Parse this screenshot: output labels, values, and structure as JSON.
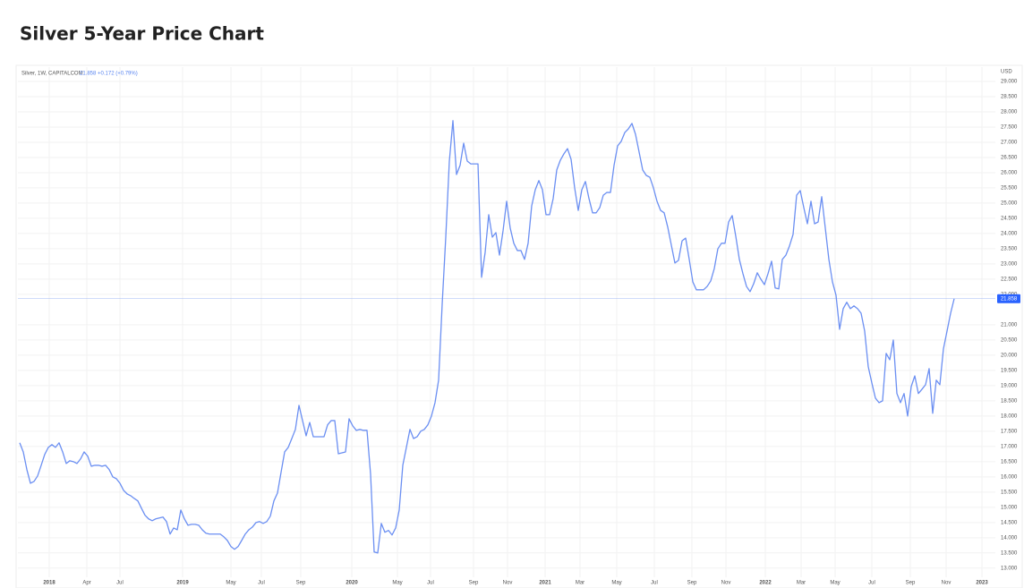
{
  "chart_data": {
    "type": "line",
    "title": "Silver 5-Year Price Chart",
    "instrument": "Silver, 1W, CAPITALCOM",
    "quote": "21.858 +0.172 (+0.79%)",
    "y_axis_label": "USD",
    "grid": true,
    "series": [
      {
        "name": "Silver",
        "color": "#6b8ff2",
        "values": [
          17.12,
          16.82,
          16.24,
          15.79,
          15.85,
          16.03,
          16.38,
          16.74,
          16.97,
          17.06,
          16.97,
          17.12,
          16.82,
          16.44,
          16.53,
          16.5,
          16.44,
          16.59,
          16.82,
          16.68,
          16.35,
          16.38,
          16.38,
          16.35,
          16.38,
          16.24,
          16.0,
          15.94,
          15.79,
          15.56,
          15.44,
          15.38,
          15.29,
          15.21,
          14.97,
          14.74,
          14.62,
          14.56,
          14.62,
          14.65,
          14.68,
          14.53,
          14.12,
          14.32,
          14.26,
          14.91,
          14.62,
          14.41,
          14.44,
          14.44,
          14.41,
          14.26,
          14.15,
          14.12,
          14.12,
          14.12,
          14.12,
          14.03,
          13.91,
          13.71,
          13.62,
          13.71,
          13.91,
          14.12,
          14.26,
          14.35,
          14.5,
          14.53,
          14.47,
          14.53,
          14.71,
          15.21,
          15.47,
          16.15,
          16.82,
          16.97,
          17.26,
          17.56,
          18.35,
          17.85,
          17.35,
          17.79,
          17.32,
          17.32,
          17.32,
          17.32,
          17.71,
          17.85,
          17.85,
          16.76,
          16.79,
          16.82,
          17.91,
          17.68,
          17.53,
          17.56,
          17.53,
          17.53,
          16.09,
          13.53,
          13.5,
          14.47,
          14.18,
          14.24,
          14.09,
          14.32,
          14.91,
          16.38,
          16.97,
          17.56,
          17.26,
          17.32,
          17.5,
          17.56,
          17.71,
          18.0,
          18.44,
          19.18,
          21.68,
          23.88,
          26.38,
          27.71,
          25.94,
          26.24,
          26.97,
          26.38,
          26.29,
          26.29,
          26.29,
          22.56,
          23.38,
          24.62,
          23.88,
          24.03,
          23.29,
          24.09,
          25.06,
          24.18,
          23.68,
          23.44,
          23.44,
          23.15,
          23.68,
          24.91,
          25.44,
          25.74,
          25.44,
          24.62,
          24.62,
          25.15,
          26.09,
          26.41,
          26.62,
          26.79,
          26.44,
          25.5,
          24.76,
          25.44,
          25.71,
          25.15,
          24.68,
          24.68,
          24.85,
          25.26,
          25.35,
          25.35,
          26.24,
          26.88,
          27.03,
          27.32,
          27.44,
          27.62,
          27.26,
          26.68,
          26.09,
          25.91,
          25.85,
          25.5,
          25.06,
          24.76,
          24.68,
          24.21,
          23.62,
          23.03,
          23.12,
          23.76,
          23.85,
          23.15,
          22.41,
          22.15,
          22.15,
          22.15,
          22.26,
          22.44,
          22.85,
          23.5,
          23.68,
          23.68,
          24.38,
          24.59,
          23.91,
          23.15,
          22.68,
          22.26,
          22.09,
          22.35,
          22.71,
          22.5,
          22.32,
          22.68,
          23.09,
          22.21,
          22.18,
          23.15,
          23.29,
          23.59,
          23.97,
          25.26,
          25.41,
          24.85,
          24.32,
          25.06,
          24.32,
          24.38,
          25.21,
          24.18,
          23.15,
          22.41,
          21.97,
          20.85,
          21.53,
          21.74,
          21.53,
          21.62,
          21.53,
          21.38,
          20.79,
          19.62,
          19.09,
          18.59,
          18.44,
          18.5,
          20.06,
          19.85,
          20.5,
          18.74,
          18.44,
          18.74,
          18.0,
          18.97,
          19.32,
          18.74,
          18.88,
          19.03,
          19.56,
          18.09,
          19.18,
          19.03,
          20.21,
          20.79,
          21.38,
          21.858
        ]
      }
    ],
    "xlim": [
      -0.5,
      272.5
    ],
    "xticks": [
      {
        "value": 8.25,
        "label": "2018"
      },
      {
        "value": 18.75,
        "label": "Apr"
      },
      {
        "value": 28,
        "label": "Jul"
      },
      {
        "value": 45.5,
        "label": "2019"
      },
      {
        "value": 59,
        "label": "May"
      },
      {
        "value": 67.5,
        "label": "Jul"
      },
      {
        "value": 78.5,
        "label": "Sep"
      },
      {
        "value": 92.75,
        "label": "2020"
      },
      {
        "value": 105.5,
        "label": "May"
      },
      {
        "value": 114.75,
        "label": "Jul"
      },
      {
        "value": 126.75,
        "label": "Sep"
      },
      {
        "value": 136.25,
        "label": "Nov"
      },
      {
        "value": 146.75,
        "label": "2021"
      },
      {
        "value": 156.5,
        "label": "Mar"
      },
      {
        "value": 166.75,
        "label": "May"
      },
      {
        "value": 177.25,
        "label": "Jul"
      },
      {
        "value": 187.75,
        "label": "Sep"
      },
      {
        "value": 197.25,
        "label": "Nov"
      },
      {
        "value": 208.25,
        "label": "2022"
      },
      {
        "value": 218.25,
        "label": "Mar"
      },
      {
        "value": 227.75,
        "label": "May"
      },
      {
        "value": 238,
        "label": "Jul"
      },
      {
        "value": 248.75,
        "label": "Sep"
      },
      {
        "value": 258.75,
        "label": "Nov"
      },
      {
        "value": 268.75,
        "label": "2023"
      }
    ],
    "ylim": [
      12.7,
      29.47
    ],
    "yticks": [
      {
        "value": 13,
        "label": "13.000"
      },
      {
        "value": 13.5,
        "label": "13.500"
      },
      {
        "value": 14,
        "label": "14.000"
      },
      {
        "value": 14.5,
        "label": "14.500"
      },
      {
        "value": 15,
        "label": "15.000"
      },
      {
        "value": 15.5,
        "label": "15.500"
      },
      {
        "value": 16,
        "label": "16.000"
      },
      {
        "value": 16.5,
        "label": "16.500"
      },
      {
        "value": 17,
        "label": "17.000"
      },
      {
        "value": 17.5,
        "label": "17.500"
      },
      {
        "value": 18,
        "label": "18.000"
      },
      {
        "value": 18.5,
        "label": "18.500"
      },
      {
        "value": 19,
        "label": "19.000"
      },
      {
        "value": 19.5,
        "label": "19.500"
      },
      {
        "value": 20,
        "label": "20.000"
      },
      {
        "value": 20.5,
        "label": "20.500"
      },
      {
        "value": 21,
        "label": "21.000"
      },
      {
        "value": 22,
        "label": "22.000"
      },
      {
        "value": 22.5,
        "label": "22.500"
      },
      {
        "value": 23,
        "label": "23.000"
      },
      {
        "value": 23.5,
        "label": "23.500"
      },
      {
        "value": 24,
        "label": "24.000"
      },
      {
        "value": 24.5,
        "label": "24.500"
      },
      {
        "value": 25,
        "label": "25.000"
      },
      {
        "value": 25.5,
        "label": "25.500"
      },
      {
        "value": 26,
        "label": "26.000"
      },
      {
        "value": 26.5,
        "label": "26.500"
      },
      {
        "value": 27,
        "label": "27.000"
      },
      {
        "value": 27.5,
        "label": "27.500"
      },
      {
        "value": 28,
        "label": "28.000"
      },
      {
        "value": 28.5,
        "label": "28.500"
      },
      {
        "value": 29,
        "label": "29.000"
      }
    ]
  }
}
